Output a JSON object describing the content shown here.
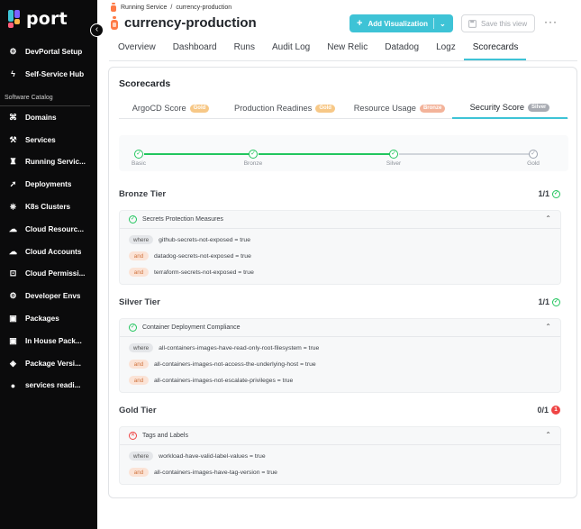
{
  "app": {
    "logo_text": "port"
  },
  "sidebar": {
    "top_items": [
      {
        "label": "DevPortal Setup",
        "icon": "gear-icon"
      },
      {
        "label": "Self-Service Hub",
        "icon": "lightning-icon"
      }
    ],
    "section_label": "Software Catalog",
    "items": [
      {
        "label": "Domains",
        "icon": "domain-icon"
      },
      {
        "label": "Services",
        "icon": "services-icon"
      },
      {
        "label": "Running Servic...",
        "icon": "running-service-icon"
      },
      {
        "label": "Deployments",
        "icon": "rocket-icon"
      },
      {
        "label": "K8s Clusters",
        "icon": "kubernetes-icon"
      },
      {
        "label": "Cloud Resourc...",
        "icon": "cloud-icon"
      },
      {
        "label": "Cloud Accounts",
        "icon": "cloud-icon"
      },
      {
        "label": "Cloud Permissi...",
        "icon": "lock-icon"
      },
      {
        "label": "Developer Envs",
        "icon": "environment-icon"
      },
      {
        "label": "Packages",
        "icon": "package-icon"
      },
      {
        "label": "In House Pack...",
        "icon": "package-icon"
      },
      {
        "label": "Package Versi...",
        "icon": "version-icon"
      },
      {
        "label": "services readi...",
        "icon": "github-icon"
      }
    ]
  },
  "header": {
    "breadcrumb_parent": "Running Service",
    "breadcrumb_sep": "/",
    "breadcrumb_current": "currency-production",
    "title": "currency-production",
    "add_visualization_label": "Add Visualization",
    "save_view_label": "Save this view",
    "more_label": "···"
  },
  "tabs": [
    "Overview",
    "Dashboard",
    "Runs",
    "Audit Log",
    "New Relic",
    "Datadog",
    "Logz",
    "Scorecards"
  ],
  "active_tab": "Scorecards",
  "scorecards": {
    "title": "Scorecards",
    "tabs": [
      {
        "label": "ArgoCD Score",
        "badge": "Gold",
        "badge_level": "gold"
      },
      {
        "label": "Production Readines",
        "badge": "Gold",
        "badge_level": "gold"
      },
      {
        "label": "Resource Usage",
        "badge": "Bronze",
        "badge_level": "bronze"
      },
      {
        "label": "Security Score",
        "badge": "Silver",
        "badge_level": "silver"
      }
    ],
    "active_tab": "Security Score",
    "levels": [
      {
        "label": "Basic",
        "achieved": true
      },
      {
        "label": "Bronze",
        "achieved": true
      },
      {
        "label": "Silver",
        "achieved": true
      },
      {
        "label": "Gold",
        "achieved": false
      }
    ],
    "tiers": [
      {
        "title": "Bronze Tier",
        "score": "1/1",
        "passed": true,
        "rule": "Secrets Protection Measures",
        "conditions": [
          {
            "op": "where",
            "text": "github-secrets-not-exposed = true"
          },
          {
            "op": "and",
            "text": "datadog-secrets-not-exposed = true"
          },
          {
            "op": "and",
            "text": "terraform-secrets-not-exposed = true"
          }
        ]
      },
      {
        "title": "Silver Tier",
        "score": "1/1",
        "passed": true,
        "rule": "Container Deployment Compliance",
        "conditions": [
          {
            "op": "where",
            "text": "all-containers-images-have-read-only-root-filesystem = true"
          },
          {
            "op": "and",
            "text": "all-containers-images-not-access-the-underlying-host = true"
          },
          {
            "op": "and",
            "text": "all-containers-images-not-escalate-privileges = true"
          }
        ]
      },
      {
        "title": "Gold Tier",
        "score": "0/1",
        "passed": false,
        "failed_count": "1",
        "rule": "Tags and Labels",
        "conditions": [
          {
            "op": "where",
            "text": "workload-have-valid-label-values = true"
          },
          {
            "op": "and",
            "text": "all-containers-images-have-tag-version = true"
          }
        ]
      }
    ]
  },
  "colors": {
    "accent": "#3ec3d6",
    "success": "#22c55e",
    "danger": "#ef4444",
    "sidebar_bg": "#0b0b0c"
  }
}
